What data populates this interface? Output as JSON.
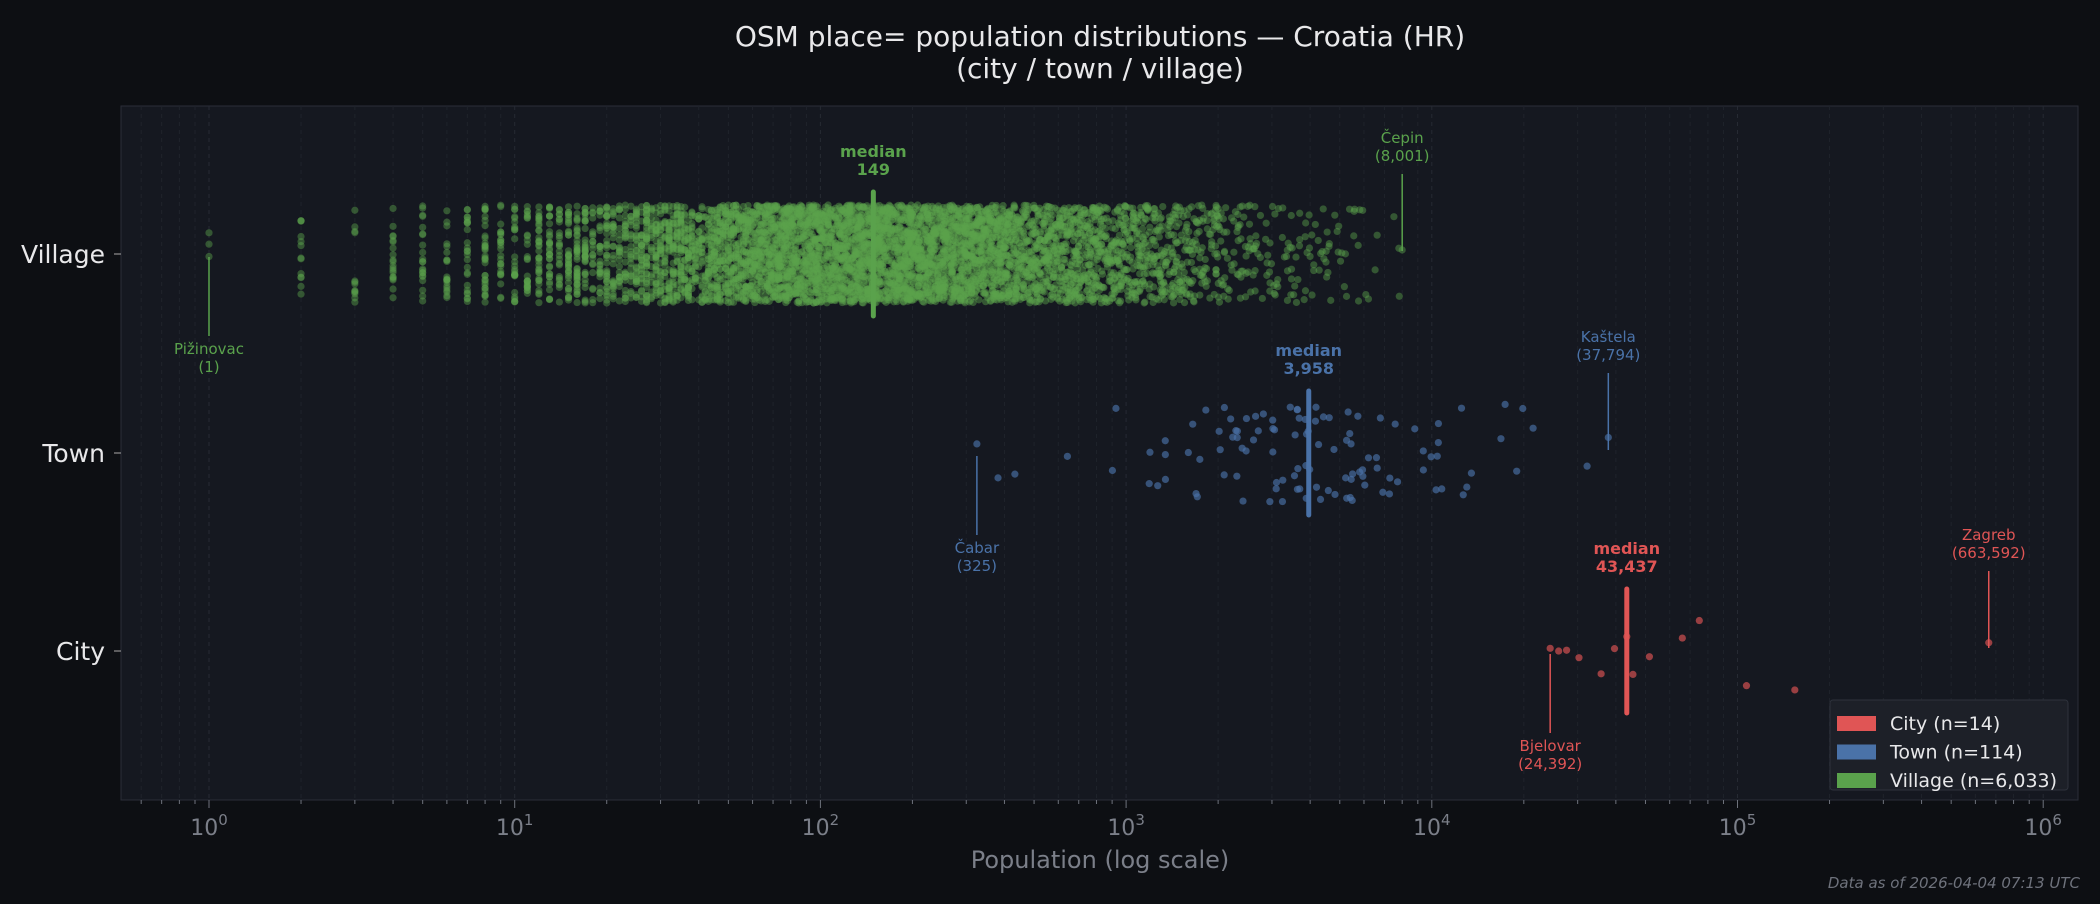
{
  "chart_data": {
    "type": "scatter",
    "title": "OSM place= population distributions — Croatia (HR)",
    "subtitle": "(city / town / village)",
    "xlabel": "Population (log scale)",
    "xscale": "log",
    "xlim": [
      0.515,
      1300000
    ],
    "xticks": [
      {
        "value": 1,
        "base": "10",
        "exp": "0"
      },
      {
        "value": 10,
        "base": "10",
        "exp": "1"
      },
      {
        "value": 100,
        "base": "10",
        "exp": "2"
      },
      {
        "value": 1000,
        "base": "10",
        "exp": "3"
      },
      {
        "value": 10000,
        "base": "10",
        "exp": "4"
      },
      {
        "value": 100000,
        "base": "10",
        "exp": "5"
      },
      {
        "value": 1000000,
        "base": "10",
        "exp": "6"
      }
    ],
    "grid": "vertical minor dashed",
    "legend_placement": "bottom-right",
    "series": [
      {
        "name": "Village",
        "legend": "Village  (n=6,033)",
        "n": 6033,
        "color": "#5aa24c",
        "median": 149,
        "median_label": "median",
        "median_value_label": "149",
        "min": 1,
        "max": 8001,
        "annotations": [
          {
            "name": "Pižinovac",
            "value": 1,
            "label": "(1)",
            "pos": "below"
          },
          {
            "name": "Čepin",
            "value": 8001,
            "label": "(8,001)",
            "pos": "above"
          }
        ]
      },
      {
        "name": "Town",
        "legend": "Town  (n=114)",
        "n": 114,
        "color": "#4a72a8",
        "median": 3958,
        "median_label": "median",
        "median_value_label": "3,958",
        "min": 325,
        "max": 37794,
        "annotations": [
          {
            "name": "Čabar",
            "value": 325,
            "label": "(325)",
            "pos": "below"
          },
          {
            "name": "Kaštela",
            "value": 37794,
            "label": "(37,794)",
            "pos": "above"
          }
        ]
      },
      {
        "name": "City",
        "legend": "City  (n=14)",
        "n": 14,
        "color": "#e05555",
        "median": 43437,
        "median_label": "median",
        "median_value_label": "43,437",
        "min": 24392,
        "max": 663592,
        "values": [
          24392,
          26000,
          27600,
          30300,
          35800,
          39600,
          43437,
          45500,
          51500,
          66000,
          75000,
          107000,
          154000,
          663592
        ],
        "annotations": [
          {
            "name": "Bjelovar",
            "value": 24392,
            "label": "(24,392)",
            "pos": "below"
          },
          {
            "name": "Zagreb",
            "value": 663592,
            "label": "(663,592)",
            "pos": "above"
          }
        ]
      }
    ],
    "categories": [
      "Village",
      "Town",
      "City"
    ],
    "footer": "Data as of 2026-04-04 07:13 UTC"
  }
}
